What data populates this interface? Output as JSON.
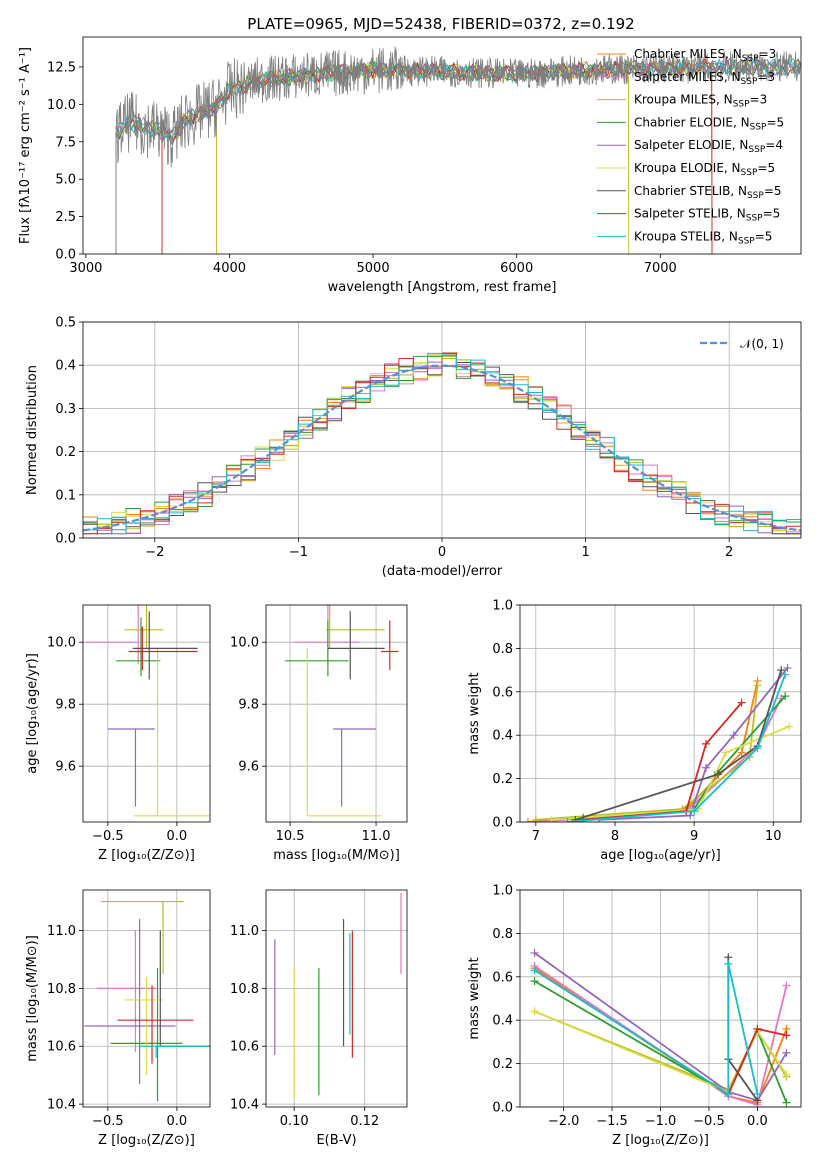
{
  "palette": [
    "#f4a582",
    "#e377c2",
    "#bcbd22",
    "#2ca02c",
    "#9467bd",
    "#dbdb8d",
    "#7f7f7f",
    "#d62728",
    "#17becf"
  ],
  "chart_data": [
    {
      "type": "line",
      "title": "PLATE=0965, MJD=52438, FIBERID=0372, z=0.192",
      "xlabel": "wavelength [Angstrom, rest frame]",
      "ylabel": "Flux [fλ10⁻¹⁷ erg cm⁻² s⁻¹ A⁻¹]",
      "xlim": [
        2980,
        7980
      ],
      "ylim": [
        0,
        14.5
      ],
      "xticks": [
        3000,
        4000,
        5000,
        6000,
        7000
      ],
      "yticks": [
        0.0,
        2.5,
        5.0,
        7.5,
        10.0,
        12.5
      ],
      "grid": false,
      "legend_position": "top-right",
      "series": [
        {
          "name": "Chabrier MILES, N",
          "sub": "SSP",
          "suffix": "=3",
          "color": "#ff7f0e"
        },
        {
          "name": "Salpeter MILES, N",
          "sub": "SSP",
          "suffix": "=3",
          "color": "#e377c2"
        },
        {
          "name": "Kroupa MILES, N",
          "sub": "SSP",
          "suffix": "=3",
          "color": "#bcbd22"
        },
        {
          "name": "Chabrier ELODIE, N",
          "sub": "SSP",
          "suffix": "=5",
          "color": "#2ca02c"
        },
        {
          "name": "Salpeter ELODIE, N",
          "sub": "SSP",
          "suffix": "=4",
          "color": "#9467bd"
        },
        {
          "name": "Kroupa ELODIE, N",
          "sub": "SSP",
          "suffix": "=5",
          "color": "#dbdb47"
        },
        {
          "name": "Chabrier STELIB, N",
          "sub": "SSP",
          "suffix": "=5",
          "color": "#555555"
        },
        {
          "name": "Salpeter STELIB, N",
          "sub": "SSP",
          "suffix": "=5",
          "color": "#d62728"
        },
        {
          "name": "Kroupa STELIB, N",
          "sub": "SSP",
          "suffix": "=5",
          "color": "#17becf"
        }
      ],
      "continuum": {
        "x": [
          3200,
          3300,
          3500,
          3600,
          3700,
          3900,
          4000,
          4200,
          4500,
          5000,
          5500,
          6000,
          6500,
          7000,
          7500,
          7980
        ],
        "y": [
          7.9,
          8.8,
          8.3,
          7.8,
          9.0,
          9.8,
          10.9,
          11.6,
          11.9,
          12.3,
          12.2,
          12.0,
          12.3,
          12.4,
          12.5,
          12.5
        ]
      }
    },
    {
      "type": "bar",
      "xlabel": "(data-model)/error",
      "ylabel": "Normed distribution",
      "xlim": [
        -2.5,
        2.5
      ],
      "ylim": [
        0,
        0.5
      ],
      "xticks": [
        -2,
        -1,
        0,
        1,
        2
      ],
      "yticks": [
        0.0,
        0.1,
        0.2,
        0.3,
        0.4,
        0.5
      ],
      "grid": true,
      "legend": "𝒩(0, 1)",
      "legend_position": "top-right",
      "bin_width": 0.1
    },
    {
      "type": "scatter",
      "xlabel": "Z [log₁₀(Z/Z⊙)]",
      "ylabel": "age  [log₁₀(age/yr)]",
      "xlim": [
        -0.68,
        0.24
      ],
      "ylim": [
        9.42,
        10.12
      ],
      "xticks": [
        -0.5,
        0.0
      ],
      "yticks": [
        9.6,
        9.8,
        10.0
      ],
      "points": [
        {
          "x": -0.28,
          "y": 10.0,
          "xerr": [
            0.38,
            0.0
          ],
          "yerr": [
            0.07,
            0.12
          ]
        },
        {
          "x": -0.22,
          "y": 10.04,
          "xerr": [
            0.16,
            0.12
          ],
          "yerr": [
            0.06,
            0.1
          ]
        },
        {
          "x": -0.26,
          "y": 9.94,
          "xerr": [
            0.18,
            0.14
          ],
          "yerr": [
            0.05,
            0.14
          ]
        },
        {
          "x": -0.3,
          "y": 9.72,
          "xerr": [
            0.2,
            0.14
          ],
          "yerr": [
            0.25,
            0.0
          ]
        },
        {
          "x": -0.14,
          "y": 9.44,
          "xerr": [
            0.17,
            0.38
          ],
          "yerr": [
            0.0,
            0.54
          ]
        },
        {
          "x": -0.2,
          "y": 9.98,
          "xerr": [
            0.12,
            0.35
          ],
          "yerr": [
            0.1,
            0.12
          ]
        },
        {
          "x": -0.25,
          "y": 9.97,
          "xerr": [
            0.1,
            0.4
          ],
          "yerr": [
            0.06,
            0.08
          ]
        }
      ]
    },
    {
      "type": "scatter",
      "xlabel": "mass [log₁₀(M/M⊙)]",
      "ylabel": "",
      "xlim": [
        10.36,
        11.18
      ],
      "ylim": [
        9.42,
        10.12
      ],
      "xticks": [
        10.5,
        11.0
      ],
      "yticks": [
        9.6,
        9.8,
        10.0
      ],
      "points": [
        {
          "x": 10.72,
          "y": 10.0,
          "xerr": [
            0.2,
            0.18
          ],
          "yerr": [
            0.07,
            0.12
          ]
        },
        {
          "x": 10.73,
          "y": 10.04,
          "xerr": [
            0.02,
            0.32
          ],
          "yerr": [
            0.06,
            0.1
          ]
        },
        {
          "x": 10.72,
          "y": 9.94,
          "xerr": [
            0.25,
            0.12
          ],
          "yerr": [
            0.05,
            0.13
          ]
        },
        {
          "x": 10.8,
          "y": 9.72,
          "xerr": [
            0.05,
            0.2
          ],
          "yerr": [
            0.25,
            0.0
          ]
        },
        {
          "x": 10.6,
          "y": 9.44,
          "xerr": [
            0.0,
            0.43
          ],
          "yerr": [
            0.0,
            0.54
          ]
        },
        {
          "x": 10.85,
          "y": 9.98,
          "xerr": [
            0.13,
            0.2
          ],
          "yerr": [
            0.1,
            0.12
          ]
        },
        {
          "x": 11.08,
          "y": 9.97,
          "xerr": [
            0.05,
            0.05
          ],
          "yerr": [
            0.06,
            0.1
          ]
        }
      ]
    },
    {
      "type": "line",
      "xlabel": "age  [log₁₀(age/yr)]",
      "ylabel": "mass weight",
      "xlim": [
        6.8,
        10.35
      ],
      "ylim": [
        0,
        1.0
      ],
      "xticks": [
        7,
        8,
        9,
        10
      ],
      "yticks": [
        0.0,
        0.2,
        0.4,
        0.6,
        0.8,
        1.0
      ],
      "grid": true,
      "lines": [
        {
          "x": [
            6.9,
            8.9,
            9.6,
            9.8
          ],
          "y": [
            0.0,
            0.06,
            0.32,
            0.65
          ]
        },
        {
          "x": [
            7.0,
            8.9,
            9.8,
            10.1
          ],
          "y": [
            0.0,
            0.05,
            0.35,
            0.57
          ]
        },
        {
          "x": [
            7.0,
            8.85,
            9.7,
            9.8
          ],
          "y": [
            0.01,
            0.06,
            0.3,
            0.63
          ]
        },
        {
          "x": [
            7.6,
            9.0,
            9.3,
            10.15
          ],
          "y": [
            0.02,
            0.06,
            0.23,
            0.58
          ]
        },
        {
          "x": [
            7.8,
            8.95,
            9.15,
            9.5,
            10.18
          ],
          "y": [
            0.01,
            0.03,
            0.25,
            0.4,
            0.71
          ]
        },
        {
          "x": [
            7.2,
            9.05,
            9.4,
            10.2
          ],
          "y": [
            0.01,
            0.06,
            0.32,
            0.44
          ]
        },
        {
          "x": [
            7.5,
            9.3,
            9.8,
            10.1
          ],
          "y": [
            0.01,
            0.22,
            0.35,
            0.7
          ]
        },
        {
          "x": [
            7.6,
            8.9,
            9.15,
            9.6
          ],
          "y": [
            0.01,
            0.05,
            0.36,
            0.55
          ]
        },
        {
          "x": [
            7.4,
            9.0,
            9.8,
            10.15
          ],
          "y": [
            0.0,
            0.05,
            0.34,
            0.68
          ]
        }
      ]
    },
    {
      "type": "scatter",
      "xlabel": "Z [log₁₀(Z/Z⊙)]",
      "ylabel": "mass [log₁₀(M/M⊙)]",
      "xlim": [
        -0.68,
        0.24
      ],
      "ylim": [
        10.39,
        11.14
      ],
      "xticks": [
        -0.5,
        0.0
      ],
      "yticks": [
        10.4,
        10.6,
        10.8,
        11.0
      ],
      "points": [
        {
          "x": -0.3,
          "y": 10.8,
          "xerr": [
            0.28,
            0.15
          ],
          "yerr": [
            0.22,
            0.2
          ]
        },
        {
          "x": -0.1,
          "y": 11.1,
          "xerr": [
            0.45,
            0.15
          ],
          "yerr": [
            0.25,
            0.0
          ]
        },
        {
          "x": -0.14,
          "y": 10.61,
          "xerr": [
            0.34,
            0.18
          ],
          "yerr": [
            0.2,
            0.26
          ]
        },
        {
          "x": -0.27,
          "y": 10.67,
          "xerr": [
            0.4,
            0.26
          ],
          "yerr": [
            0.2,
            0.37
          ]
        },
        {
          "x": -0.22,
          "y": 10.76,
          "xerr": [
            0.16,
            0.12
          ],
          "yerr": [
            0.26,
            0.08
          ]
        },
        {
          "x": -0.12,
          "y": 10.6,
          "xerr": [
            0.0,
            0.36
          ],
          "yerr": [
            0.0,
            0.4
          ]
        },
        {
          "x": -0.18,
          "y": 10.69,
          "xerr": [
            0.25,
            0.3
          ],
          "yerr": [
            0.15,
            0.12
          ]
        },
        {
          "x": -0.15,
          "y": 10.6,
          "xerr": [
            0.12,
            0.38
          ],
          "yerr": [
            0.04,
            0.0
          ]
        }
      ]
    },
    {
      "type": "scatter",
      "xlabel": "E(B-V)",
      "ylabel": "",
      "xlim": [
        0.092,
        0.132
      ],
      "ylim": [
        10.39,
        11.14
      ],
      "xticks": [
        0.1,
        0.12
      ],
      "yticks": [
        10.4,
        10.6,
        10.8,
        11.0
      ],
      "segments": [
        {
          "x": 0.0945,
          "y": [
            10.57,
            10.97
          ],
          "color": "#9467bd"
        },
        {
          "x": 0.1,
          "y": [
            10.42,
            10.87
          ],
          "color": "#dbdb47"
        },
        {
          "x": 0.107,
          "y": [
            10.43,
            10.87
          ],
          "color": "#2ca02c"
        },
        {
          "x": 0.114,
          "y": [
            10.6,
            11.04
          ],
          "color": "#555555"
        },
        {
          "x": 0.1165,
          "y": [
            10.56,
            11.0
          ],
          "color": "#d62728"
        },
        {
          "x": 0.1158,
          "y": [
            10.64,
            10.99
          ],
          "color": "#17becf"
        },
        {
          "x": 0.1303,
          "y": [
            10.85,
            11.13
          ],
          "color": "#e377c2"
        }
      ]
    },
    {
      "type": "line",
      "xlabel": "Z [log₁₀(Z/Z⊙)]",
      "ylabel": "mass weight",
      "xlim": [
        -2.45,
        0.45
      ],
      "ylim": [
        0,
        1.0
      ],
      "xticks": [
        -2.0,
        -1.5,
        -1.0,
        -0.5,
        0.0
      ],
      "yticks": [
        0.0,
        0.2,
        0.4,
        0.6,
        0.8,
        1.0
      ],
      "grid": true,
      "lines": [
        {
          "x": [
            -2.3,
            -0.3,
            0.0,
            0.3
          ],
          "y": [
            0.64,
            0.05,
            0.02,
            0.36
          ]
        },
        {
          "x": [
            -2.3,
            -0.3,
            0.0,
            0.3
          ],
          "y": [
            0.65,
            0.05,
            0.01,
            0.56
          ]
        },
        {
          "x": [
            -2.3,
            -0.3,
            0.0,
            0.3
          ],
          "y": [
            0.44,
            0.08,
            0.35,
            0.14
          ]
        },
        {
          "x": [
            -2.3,
            -0.3,
            0.0,
            0.3
          ],
          "y": [
            0.58,
            0.06,
            0.35,
            0.02
          ]
        },
        {
          "x": [
            -2.3,
            -0.3,
            0.0,
            0.3
          ],
          "y": [
            0.71,
            0.07,
            0.03,
            0.25
          ]
        },
        {
          "x": [
            -2.3,
            -0.3,
            0.0,
            0.3
          ],
          "y": [
            0.44,
            0.07,
            0.35,
            0.15
          ]
        },
        {
          "x": [
            -0.3,
            -0.3,
            0.0
          ],
          "y": [
            0.69,
            0.22,
            0.03
          ]
        },
        {
          "x": [
            -0.3,
            0.0,
            0.3
          ],
          "y": [
            0.06,
            0.36,
            0.33
          ]
        },
        {
          "x": [
            -2.3,
            -0.3,
            -0.3,
            0.0
          ],
          "y": [
            0.63,
            0.06,
            0.66,
            0.06
          ]
        }
      ]
    }
  ]
}
